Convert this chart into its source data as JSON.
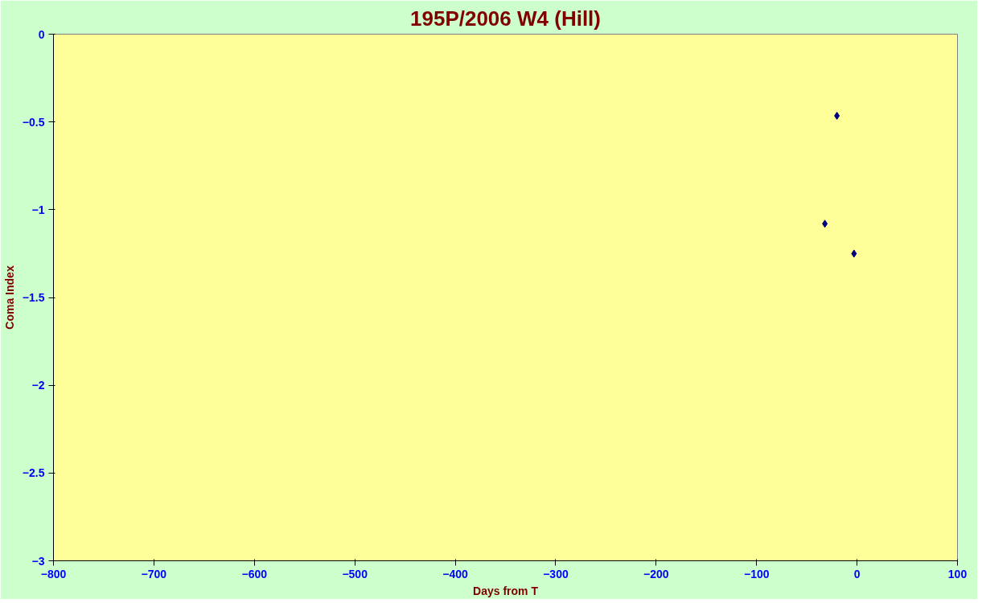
{
  "chart_data": {
    "type": "scatter",
    "title": "195P/2006 W4 (Hill)",
    "xlabel": "Days from T",
    "ylabel": "Coma Index",
    "series": [
      {
        "color": "#000080",
        "x": [
          -32,
          -20,
          -3
        ],
        "values": [
          -1.08,
          -0.465,
          -1.25
        ]
      }
    ],
    "xlim": [
      -800,
      100
    ],
    "ylim": [
      -3,
      0
    ],
    "xticks": [
      -800,
      -700,
      -600,
      -500,
      -400,
      -300,
      -200,
      -100,
      0,
      100
    ],
    "yticks": [
      -3,
      -2.5,
      -2,
      -1.5,
      -1,
      -0.5,
      0
    ],
    "marker": "diamond",
    "grid": false
  }
}
